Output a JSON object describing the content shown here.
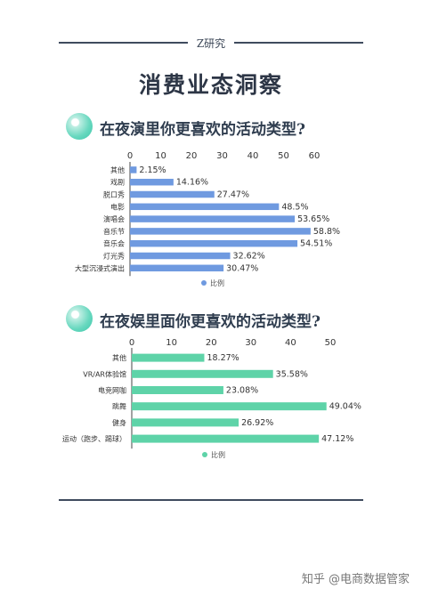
{
  "header": {
    "brand": "Z研究",
    "title": "消费业态洞察"
  },
  "sections": [
    {
      "title": "在夜演里你更喜欢的活动类型?",
      "chart_data": {
        "type": "bar",
        "orientation": "horizontal",
        "categories": [
          "其他",
          "戏剧",
          "脱口秀",
          "电影",
          "演唱会",
          "音乐节",
          "音乐会",
          "灯光秀",
          "大型沉浸式演出"
        ],
        "series": [
          {
            "name": "比例",
            "values": [
              2.15,
              14.16,
              27.47,
              48.5,
              53.65,
              58.8,
              54.51,
              32.62,
              30.47
            ]
          }
        ],
        "value_labels": [
          "2.15%",
          "14.16%",
          "27.47%",
          "48.5%",
          "53.65%",
          "58.8%",
          "54.51%",
          "32.62%",
          "30.47%"
        ],
        "xlim": [
          0,
          60
        ],
        "ticks": [
          0,
          10,
          20,
          30,
          40,
          50,
          60
        ],
        "tick_labels": [
          "0",
          "10",
          "20",
          "30",
          "40",
          "50",
          "60"
        ],
        "legend": "bottom",
        "color": "#6f9ae0"
      }
    },
    {
      "title": "在夜娱里面你更喜欢的活动类型?",
      "chart_data": {
        "type": "bar",
        "orientation": "horizontal",
        "categories": [
          "其他",
          "VR/AR体验馆",
          "电竞网咖",
          "跳舞",
          "健身",
          "运动（跑步、踢球）"
        ],
        "series": [
          {
            "name": "比例",
            "values": [
              18.27,
              35.58,
              23.08,
              49.04,
              26.92,
              47.12
            ]
          }
        ],
        "value_labels": [
          "18.27%",
          "35.58%",
          "23.08%",
          "49.04%",
          "26.92%",
          "47.12%"
        ],
        "xlim": [
          0,
          50
        ],
        "ticks": [
          0,
          10,
          20,
          30,
          40,
          50
        ],
        "tick_labels": [
          "0",
          "10",
          "20",
          "30",
          "40",
          "50"
        ],
        "legend": "bottom",
        "color": "#5ed3a8"
      }
    }
  ],
  "footer": {
    "watermark": "知乎 @电商数据管家"
  }
}
